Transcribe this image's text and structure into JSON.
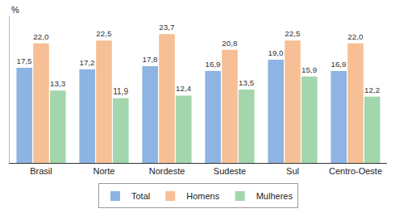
{
  "chart_data": {
    "type": "bar",
    "y_label": "%",
    "categories": [
      "Brasil",
      "Norte",
      "Nordeste",
      "Sudeste",
      "Sul",
      "Centro-Oeste"
    ],
    "series": [
      {
        "name": "Total",
        "color": "#8db4e2",
        "values": [
          17.5,
          17.2,
          17.8,
          16.9,
          19.0,
          16.9
        ],
        "value_labels": [
          "17,5",
          "17,2",
          "17,8",
          "16,9",
          "19,0",
          "16,9"
        ]
      },
      {
        "name": "Homens",
        "color": "#f7bf95",
        "values": [
          22.0,
          22.5,
          23.7,
          20.8,
          22.5,
          22.0
        ],
        "value_labels": [
          "22,0",
          "22,5",
          "23,7",
          "20,8",
          "22,5",
          "22,0"
        ]
      },
      {
        "name": "Mulheres",
        "color": "#a3d6ac",
        "values": [
          13.3,
          11.9,
          12.4,
          13.5,
          15.9,
          12.2
        ],
        "value_labels": [
          "13,3",
          "11,9",
          "12,4",
          "13,5",
          "15,9",
          "12,2"
        ]
      }
    ],
    "ylim": [
      0,
      27
    ],
    "tick_labels": "x",
    "grid": false,
    "data_labels": true,
    "legend": "bottom"
  }
}
